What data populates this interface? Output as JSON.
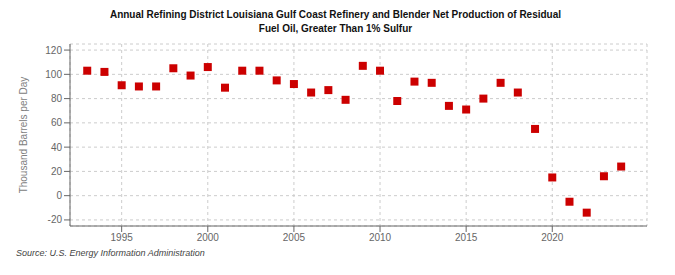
{
  "chart_data": {
    "type": "scatter",
    "title": "Annual Refining District Louisiana Gulf Coast Refinery and Blender Net Production of Residual\nFuel Oil, Greater Than 1% Sulfur",
    "ylabel": "Thousand Barrels per Day",
    "source": "Source: U.S. Energy Information Administration",
    "color": "#cc0000",
    "marker": "square",
    "grid": true,
    "xlim": [
      1992.0,
      2025.5
    ],
    "ylim": [
      -25,
      125
    ],
    "xticks": [
      1995,
      2000,
      2005,
      2010,
      2015,
      2020
    ],
    "yticks": [
      -20,
      0,
      20,
      40,
      60,
      80,
      100,
      120
    ],
    "x": [
      1993,
      1994,
      1995,
      1996,
      1997,
      1998,
      1999,
      2000,
      2001,
      2002,
      2003,
      2004,
      2005,
      2006,
      2007,
      2008,
      2009,
      2010,
      2011,
      2012,
      2013,
      2014,
      2015,
      2016,
      2017,
      2018,
      2019,
      2020,
      2021,
      2022,
      2023,
      2024
    ],
    "values": [
      103,
      102,
      91,
      90,
      90,
      105,
      99,
      106,
      89,
      103,
      103,
      95,
      92,
      85,
      87,
      79,
      107,
      103,
      78,
      94,
      93,
      74,
      71,
      80,
      93,
      85,
      55,
      15,
      -5,
      -14,
      16,
      24
    ]
  }
}
